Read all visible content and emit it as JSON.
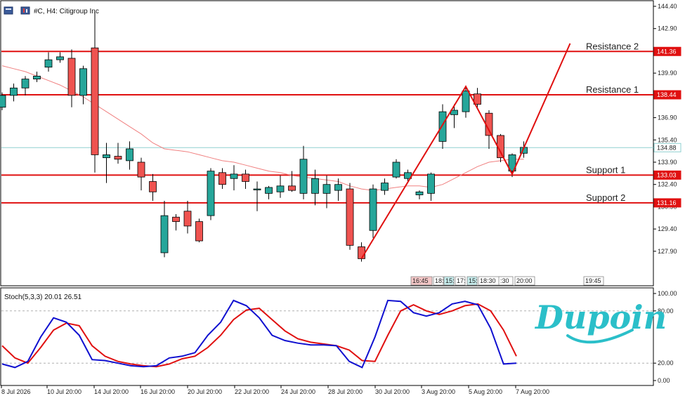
{
  "header": {
    "title": "#C, H4:  Citigroup Inc"
  },
  "indicator": {
    "label": "Stoch(5,3,3) 20.01 26.51",
    "levels": [
      "100.00",
      "80.00",
      "20.00",
      "0.00"
    ]
  },
  "brand": {
    "logo_text": "Dupoin"
  },
  "colors": {
    "bull": "#26a69a",
    "bear": "#ef5350",
    "level_line": "#e01010",
    "current_line": "#8fd0d0",
    "ma": "#f08080",
    "stoch_k": "#1010d0",
    "stoch_d": "#e01010"
  },
  "chart_data": {
    "type": "candlestick",
    "symbol": "#C",
    "timeframe": "H4",
    "y_ticks": [
      "144.40",
      "142.90",
      "141.40",
      "139.90",
      "138.40",
      "136.90",
      "135.40",
      "133.90",
      "132.40",
      "130.90",
      "129.40",
      "127.90"
    ],
    "ylim": [
      126.9,
      144.4
    ],
    "x_ticks": [
      "8 Jul 2026",
      "10 Jul 20:00",
      "14 Jul 20:00",
      "16 Jul 20:00",
      "20 Jul 20:00",
      "22 Jul 20:00",
      "24 Jul 20:00",
      "28 Jul 20:00",
      "30 Jul 20:00",
      "3 Aug 20:00",
      "5 Aug 20:00",
      "7 Aug 20:00"
    ],
    "time_boxes": [
      "16:45",
      "18:",
      "15:",
      "17:",
      "15:",
      "18:30",
      ":30",
      "20:00",
      "19:45"
    ],
    "price_tags": [
      "141.36",
      "138.44",
      "134.88",
      "133.03",
      "131.16"
    ],
    "levels": [
      {
        "name": "Resistance 2",
        "value": 141.36
      },
      {
        "name": "Resistance 1",
        "value": 138.44
      },
      {
        "name": "Support 1",
        "value": 133.03
      },
      {
        "name": "Support 2",
        "value": 131.16
      }
    ],
    "current_price": 134.88,
    "candles": [
      {
        "o": 137.6,
        "h": 138.6,
        "l": 137.4,
        "c": 138.4
      },
      {
        "o": 138.4,
        "h": 139.2,
        "l": 138.0,
        "c": 138.9
      },
      {
        "o": 138.9,
        "h": 139.7,
        "l": 138.4,
        "c": 139.5
      },
      {
        "o": 139.5,
        "h": 140.0,
        "l": 139.3,
        "c": 139.7
      },
      {
        "o": 140.3,
        "h": 141.3,
        "l": 140.0,
        "c": 140.8
      },
      {
        "o": 140.8,
        "h": 141.3,
        "l": 140.6,
        "c": 141.0
      },
      {
        "o": 140.9,
        "h": 141.5,
        "l": 137.6,
        "c": 138.4
      },
      {
        "o": 138.4,
        "h": 140.4,
        "l": 137.8,
        "c": 140.2
      },
      {
        "o": 141.6,
        "h": 144.0,
        "l": 133.2,
        "c": 134.4
      },
      {
        "o": 134.2,
        "h": 135.2,
        "l": 132.5,
        "c": 134.4
      },
      {
        "o": 134.3,
        "h": 135.2,
        "l": 133.8,
        "c": 134.1
      },
      {
        "o": 134.0,
        "h": 135.3,
        "l": 133.4,
        "c": 134.8
      },
      {
        "o": 133.9,
        "h": 134.2,
        "l": 132.0,
        "c": 132.9
      },
      {
        "o": 132.6,
        "h": 133.1,
        "l": 131.3,
        "c": 131.9
      },
      {
        "o": 127.8,
        "h": 131.3,
        "l": 127.5,
        "c": 130.3
      },
      {
        "o": 130.2,
        "h": 130.4,
        "l": 129.3,
        "c": 129.9
      },
      {
        "o": 130.6,
        "h": 131.3,
        "l": 129.1,
        "c": 129.6
      },
      {
        "o": 129.9,
        "h": 130.1,
        "l": 128.5,
        "c": 128.6
      },
      {
        "o": 130.3,
        "h": 133.5,
        "l": 130.0,
        "c": 133.3
      },
      {
        "o": 133.2,
        "h": 133.5,
        "l": 132.1,
        "c": 132.4
      },
      {
        "o": 132.8,
        "h": 133.7,
        "l": 132.0,
        "c": 133.1
      },
      {
        "o": 133.1,
        "h": 133.4,
        "l": 132.1,
        "c": 132.6
      },
      {
        "o": 132.1,
        "h": 132.6,
        "l": 130.6,
        "c": 132.1
      },
      {
        "o": 131.8,
        "h": 132.3,
        "l": 131.4,
        "c": 132.2
      },
      {
        "o": 131.9,
        "h": 133.0,
        "l": 131.5,
        "c": 132.3
      },
      {
        "o": 132.3,
        "h": 133.3,
        "l": 131.9,
        "c": 132.0
      },
      {
        "o": 131.8,
        "h": 135.0,
        "l": 131.4,
        "c": 134.1
      },
      {
        "o": 131.8,
        "h": 133.4,
        "l": 131.0,
        "c": 132.8
      },
      {
        "o": 131.8,
        "h": 133.0,
        "l": 130.8,
        "c": 132.4
      },
      {
        "o": 132.0,
        "h": 132.8,
        "l": 131.3,
        "c": 132.4
      },
      {
        "o": 132.1,
        "h": 132.5,
        "l": 128.0,
        "c": 128.3
      },
      {
        "o": 128.2,
        "h": 128.5,
        "l": 127.2,
        "c": 127.4
      },
      {
        "o": 129.3,
        "h": 132.4,
        "l": 128.8,
        "c": 132.1
      },
      {
        "o": 132.0,
        "h": 132.8,
        "l": 131.7,
        "c": 132.5
      },
      {
        "o": 132.9,
        "h": 134.1,
        "l": 132.8,
        "c": 133.9
      },
      {
        "o": 132.8,
        "h": 133.4,
        "l": 132.5,
        "c": 133.2
      },
      {
        "o": 131.7,
        "h": 132.0,
        "l": 131.4,
        "c": 131.9
      },
      {
        "o": 131.8,
        "h": 133.2,
        "l": 131.3,
        "c": 133.1
      },
      {
        "o": 135.3,
        "h": 137.8,
        "l": 134.8,
        "c": 137.3
      },
      {
        "o": 137.1,
        "h": 137.8,
        "l": 136.2,
        "c": 137.4
      },
      {
        "o": 137.3,
        "h": 139.0,
        "l": 136.9,
        "c": 138.7
      },
      {
        "o": 138.5,
        "h": 138.9,
        "l": 137.5,
        "c": 137.8
      },
      {
        "o": 137.2,
        "h": 137.4,
        "l": 134.8,
        "c": 135.7
      },
      {
        "o": 135.7,
        "h": 135.8,
        "l": 133.9,
        "c": 134.2
      },
      {
        "o": 133.3,
        "h": 134.5,
        "l": 132.9,
        "c": 134.4
      },
      {
        "o": 134.5,
        "h": 135.3,
        "l": 134.2,
        "c": 134.9
      }
    ],
    "ma": [
      140.4,
      140.2,
      140.0,
      139.7,
      139.4,
      139.1,
      138.7,
      138.3,
      137.8,
      137.3,
      136.8,
      136.3,
      135.8,
      135.2,
      134.8,
      134.7,
      134.6,
      134.4,
      134.2,
      134.0,
      133.9,
      133.7,
      133.5,
      133.3,
      133.2,
      133.0,
      132.9,
      132.8,
      132.7,
      132.6,
      132.3,
      132.1,
      132.0,
      132.1,
      132.2,
      132.3,
      132.3,
      132.2,
      132.4,
      132.8,
      133.2,
      133.6,
      133.9,
      134.0,
      134.1,
      134.1
    ],
    "pattern_line": [
      [
        31,
        127.4
      ],
      [
        40,
        139.0
      ],
      [
        44,
        133.1
      ],
      [
        49,
        141.9
      ]
    ],
    "stoch_ylim": [
      0,
      100
    ],
    "stoch_k": [
      19,
      15,
      22,
      50,
      72,
      67,
      52,
      24,
      23,
      20,
      17,
      16,
      17,
      26,
      28,
      32,
      52,
      67,
      92,
      86,
      72,
      52,
      46,
      43,
      41,
      41,
      40,
      22,
      15,
      50,
      92,
      91,
      78,
      74,
      78,
      88,
      91,
      87,
      60,
      19,
      20
    ],
    "stoch_d": [
      40,
      26,
      20,
      38,
      58,
      66,
      63,
      40,
      28,
      22,
      19,
      17,
      16,
      19,
      25,
      28,
      38,
      52,
      70,
      81,
      83,
      70,
      57,
      48,
      44,
      42,
      40,
      35,
      23,
      22,
      52,
      80,
      87,
      80,
      76,
      80,
      86,
      88,
      80,
      58,
      28
    ]
  }
}
